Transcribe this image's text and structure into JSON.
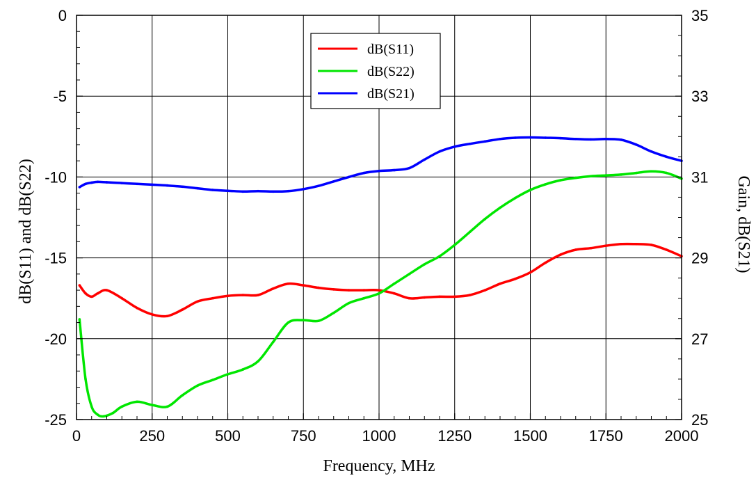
{
  "chart_data": {
    "type": "line",
    "xlabel": "Frequency, MHz",
    "ylabel_left": "dB(S11) and dB(S22)",
    "ylabel_right": "Gain, dB(S21)",
    "xlim": [
      0,
      2000
    ],
    "ylim_left": [
      -25,
      0
    ],
    "ylim_right": [
      25,
      35
    ],
    "x_ticks": [
      "0",
      "250",
      "500",
      "750",
      "1000",
      "1250",
      "1500",
      "1750",
      "2000"
    ],
    "y_left_ticks": [
      "0",
      "-5",
      "-10",
      "-15",
      "-20",
      "-25"
    ],
    "y_right_ticks": [
      "35",
      "33",
      "31",
      "29",
      "27",
      "25"
    ],
    "grid": true,
    "legend_position": "top-center",
    "series": [
      {
        "name": "dB(S11)",
        "axis": "left",
        "color": "#ff0000",
        "x": [
          10,
          30,
          50,
          70,
          100,
          150,
          200,
          250,
          300,
          350,
          400,
          450,
          500,
          550,
          600,
          650,
          700,
          750,
          800,
          850,
          900,
          950,
          1000,
          1050,
          1100,
          1150,
          1200,
          1250,
          1300,
          1350,
          1400,
          1450,
          1500,
          1550,
          1600,
          1650,
          1700,
          1750,
          1800,
          1850,
          1900,
          1950,
          2000
        ],
        "values": [
          -16.7,
          -17.2,
          -17.4,
          -17.2,
          -17.0,
          -17.5,
          -18.1,
          -18.5,
          -18.6,
          -18.2,
          -17.7,
          -17.5,
          -17.35,
          -17.3,
          -17.3,
          -16.9,
          -16.6,
          -16.7,
          -16.85,
          -16.95,
          -17.0,
          -17.0,
          -17.0,
          -17.2,
          -17.5,
          -17.45,
          -17.4,
          -17.4,
          -17.3,
          -17.0,
          -16.6,
          -16.3,
          -15.9,
          -15.3,
          -14.8,
          -14.5,
          -14.4,
          -14.25,
          -14.15,
          -14.15,
          -14.2,
          -14.5,
          -14.9
        ]
      },
      {
        "name": "dB(S22)",
        "axis": "left",
        "color": "#00e600",
        "x": [
          10,
          30,
          50,
          70,
          90,
          120,
          150,
          200,
          250,
          300,
          350,
          400,
          450,
          500,
          550,
          600,
          650,
          700,
          750,
          800,
          850,
          900,
          950,
          1000,
          1050,
          1100,
          1150,
          1200,
          1250,
          1300,
          1350,
          1400,
          1450,
          1500,
          1550,
          1600,
          1650,
          1700,
          1750,
          1800,
          1850,
          1900,
          1950,
          2000
        ],
        "values": [
          -18.8,
          -22.5,
          -24.2,
          -24.7,
          -24.8,
          -24.6,
          -24.2,
          -23.9,
          -24.1,
          -24.2,
          -23.5,
          -22.9,
          -22.55,
          -22.2,
          -21.9,
          -21.4,
          -20.2,
          -19.0,
          -18.85,
          -18.9,
          -18.4,
          -17.8,
          -17.5,
          -17.2,
          -16.6,
          -16.0,
          -15.4,
          -14.9,
          -14.2,
          -13.4,
          -12.6,
          -11.9,
          -11.3,
          -10.8,
          -10.45,
          -10.2,
          -10.05,
          -9.95,
          -9.9,
          -9.85,
          -9.75,
          -9.65,
          -9.75,
          -10.1
        ]
      },
      {
        "name": "dB(S21)",
        "axis": "right",
        "color": "#0000ff",
        "x": [
          10,
          30,
          50,
          70,
          100,
          150,
          200,
          250,
          300,
          350,
          400,
          450,
          500,
          550,
          600,
          650,
          700,
          750,
          800,
          850,
          900,
          950,
          1000,
          1050,
          1100,
          1150,
          1200,
          1250,
          1300,
          1350,
          1400,
          1450,
          1500,
          1550,
          1600,
          1650,
          1700,
          1750,
          1800,
          1850,
          1900,
          1950,
          2000
        ],
        "values": [
          30.75,
          30.83,
          30.86,
          30.88,
          30.87,
          30.85,
          30.83,
          30.81,
          30.79,
          30.76,
          30.72,
          30.68,
          30.66,
          30.64,
          30.65,
          30.64,
          30.65,
          30.7,
          30.78,
          30.89,
          31.0,
          31.1,
          31.15,
          31.17,
          31.22,
          31.43,
          31.63,
          31.75,
          31.82,
          31.88,
          31.94,
          31.97,
          31.98,
          31.97,
          31.96,
          31.94,
          31.93,
          31.94,
          31.92,
          31.8,
          31.63,
          31.5,
          31.4
        ]
      }
    ]
  }
}
